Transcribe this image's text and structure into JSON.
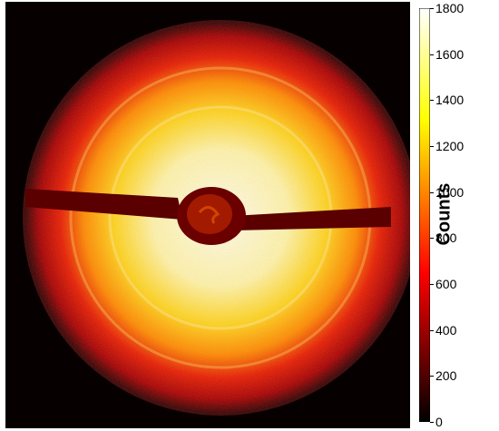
{
  "image": {
    "subject": "diffraction-rings",
    "colormap": "hot"
  },
  "colorbar": {
    "label": "Counts",
    "min": 0,
    "max": 1800,
    "ticks": [
      "1800",
      "1600",
      "1400",
      "1200",
      "1000",
      "800",
      "600",
      "400",
      "200",
      "0"
    ]
  },
  "colors": {
    "black": "#000000",
    "dark_red": "#6a0000",
    "red": "#e00000",
    "orange": "#ff6a00",
    "yellow": "#ffe000",
    "white": "#ffffff"
  }
}
